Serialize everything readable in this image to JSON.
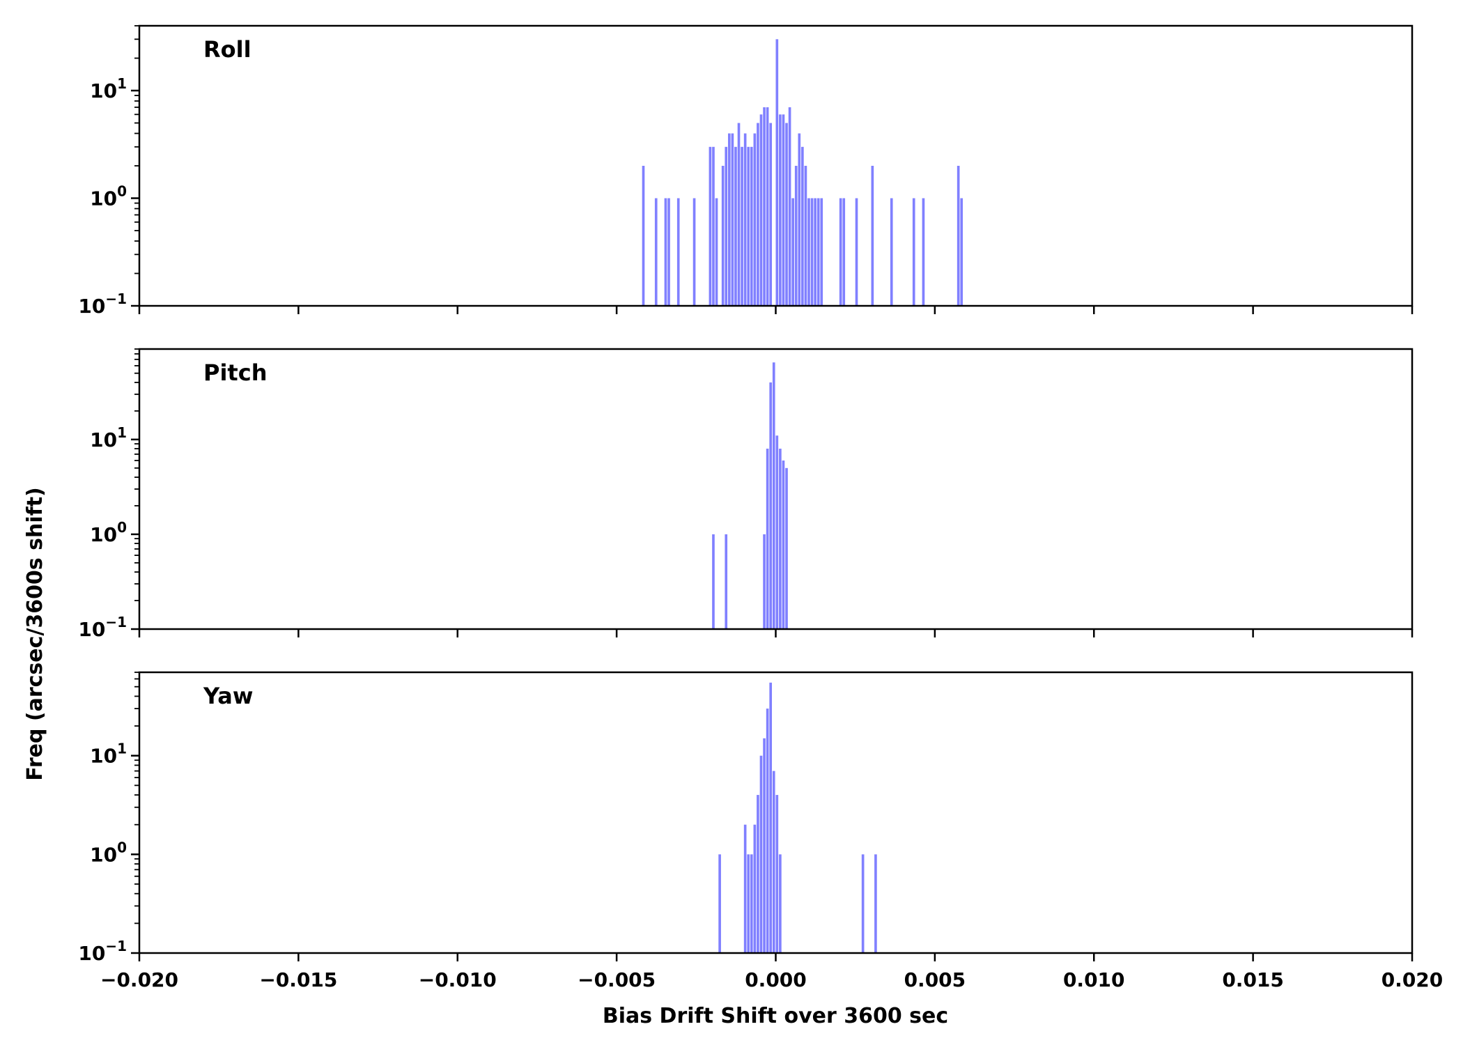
{
  "figure": {
    "xlabel": "Bias Drift Shift over 3600 sec",
    "ylabel": "Freq (arcsec/3600s shift)"
  },
  "chart_data": {
    "type": "bar",
    "xlim": [
      -0.02,
      0.02
    ],
    "x_ticks": [
      -0.02,
      -0.015,
      -0.01,
      -0.005,
      0.0,
      0.005,
      0.01,
      0.015,
      0.02
    ],
    "x_tick_labels": [
      "−0.020",
      "−0.015",
      "−0.010",
      "−0.005",
      "0.000",
      "0.005",
      "0.010",
      "0.015",
      "0.020"
    ],
    "y_scale": "log",
    "bar_color": "#8080ff",
    "bin_width": 0.0001,
    "panels": [
      {
        "title": "Roll",
        "ylim": [
          0.1,
          40
        ],
        "y_ticks": [
          0.1,
          1,
          10
        ],
        "y_tick_labels": [
          [
            "10",
            "−1"
          ],
          [
            "10",
            "0"
          ],
          [
            "10",
            "1"
          ]
        ],
        "bins": [
          [
            -0.0042,
            2
          ],
          [
            -0.0038,
            1
          ],
          [
            -0.0035,
            1
          ],
          [
            -0.0034,
            1
          ],
          [
            -0.0031,
            1
          ],
          [
            -0.0026,
            1
          ],
          [
            -0.0021,
            3
          ],
          [
            -0.002,
            3
          ],
          [
            -0.0019,
            1
          ],
          [
            -0.0017,
            2
          ],
          [
            -0.0016,
            3
          ],
          [
            -0.0015,
            4
          ],
          [
            -0.0014,
            4
          ],
          [
            -0.0013,
            3
          ],
          [
            -0.0012,
            5
          ],
          [
            -0.0011,
            3
          ],
          [
            -0.001,
            4
          ],
          [
            -0.0009,
            3
          ],
          [
            -0.0008,
            3
          ],
          [
            -0.0007,
            4
          ],
          [
            -0.0006,
            5
          ],
          [
            -0.0005,
            6
          ],
          [
            -0.0004,
            7
          ],
          [
            -0.0003,
            7
          ],
          [
            -0.0002,
            5
          ],
          [
            0.0,
            30
          ],
          [
            0.0001,
            6
          ],
          [
            0.0002,
            6
          ],
          [
            0.0003,
            5
          ],
          [
            0.0004,
            7
          ],
          [
            0.0005,
            1
          ],
          [
            0.0006,
            2
          ],
          [
            0.0007,
            4
          ],
          [
            0.0008,
            3
          ],
          [
            0.0009,
            2
          ],
          [
            0.001,
            1
          ],
          [
            0.0011,
            1
          ],
          [
            0.0012,
            1
          ],
          [
            0.0013,
            1
          ],
          [
            0.0014,
            1
          ],
          [
            0.002,
            1
          ],
          [
            0.0021,
            1
          ],
          [
            0.0025,
            1
          ],
          [
            0.003,
            2
          ],
          [
            0.0036,
            1
          ],
          [
            0.0043,
            1
          ],
          [
            0.0046,
            1
          ],
          [
            0.0057,
            2
          ],
          [
            0.0058,
            1
          ]
        ]
      },
      {
        "title": "Pitch",
        "ylim": [
          0.1,
          90
        ],
        "y_ticks": [
          0.1,
          1,
          10
        ],
        "y_tick_labels": [
          [
            "10",
            "−1"
          ],
          [
            "10",
            "0"
          ],
          [
            "10",
            "1"
          ]
        ],
        "bins": [
          [
            -0.002,
            1
          ],
          [
            -0.0016,
            1
          ],
          [
            -0.0004,
            1
          ],
          [
            -0.0003,
            8
          ],
          [
            -0.0002,
            40
          ],
          [
            -0.0001,
            65
          ],
          [
            0.0,
            11
          ],
          [
            0.0001,
            8
          ],
          [
            0.0002,
            6
          ],
          [
            0.0003,
            5
          ]
        ]
      },
      {
        "title": "Yaw",
        "ylim": [
          0.1,
          70
        ],
        "y_ticks": [
          0.1,
          1,
          10
        ],
        "y_tick_labels": [
          [
            "10",
            "−1"
          ],
          [
            "10",
            "0"
          ],
          [
            "10",
            "1"
          ]
        ],
        "bins": [
          [
            -0.0018,
            1
          ],
          [
            -0.001,
            2
          ],
          [
            -0.0009,
            1
          ],
          [
            -0.0008,
            1
          ],
          [
            -0.0007,
            2
          ],
          [
            -0.0006,
            4
          ],
          [
            -0.0005,
            10
          ],
          [
            -0.0004,
            15
          ],
          [
            -0.0003,
            30
          ],
          [
            -0.0002,
            55
          ],
          [
            -0.0001,
            7
          ],
          [
            0.0,
            4
          ],
          [
            0.0001,
            1
          ],
          [
            0.0027,
            1
          ],
          [
            0.0031,
            1
          ]
        ]
      }
    ]
  }
}
